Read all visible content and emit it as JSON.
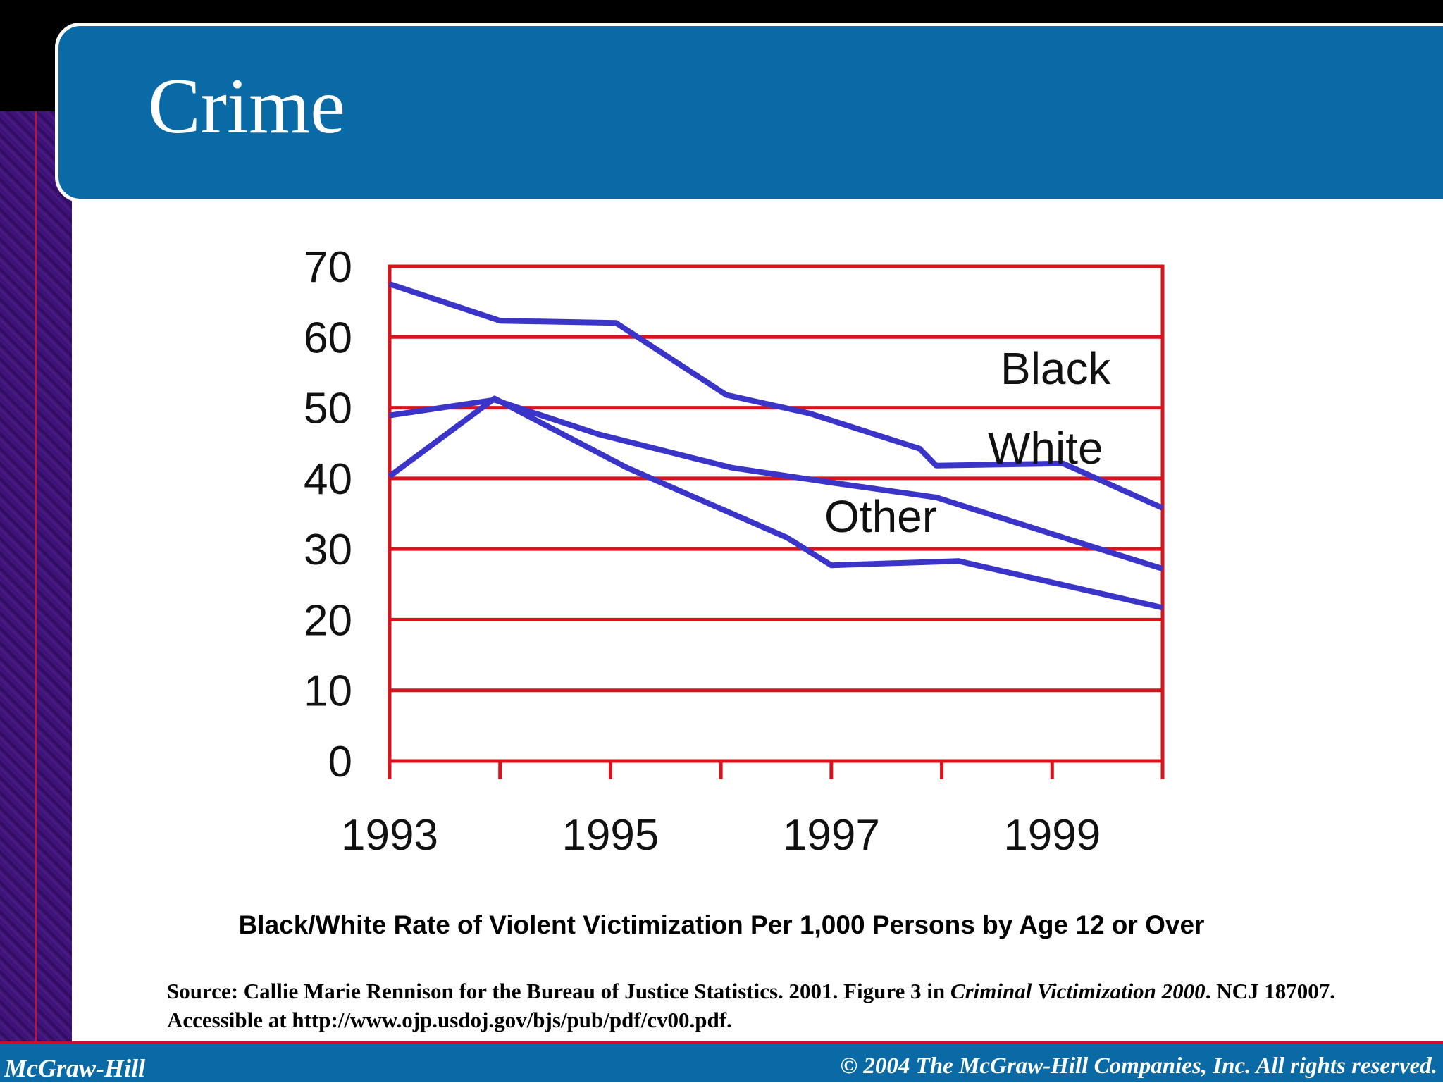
{
  "slide": {
    "title": "Crime",
    "caption": "Black/White Rate of Violent Victimization Per 1,000 Persons by Age 12 or Over",
    "source_prefix": "Source: Callie Marie Rennison for the Bureau of Justice Statistics. 2001. Figure 3 in ",
    "source_title": "Criminal Victimization 2000",
    "source_suffix": ". NCJ 187007. Accessible at http://www.ojp.usdoj.gov/bjs/pub/pdf/cv00.pdf.",
    "footer_left": "McGraw-Hill",
    "footer_right": "© 2004 The McGraw-Hill Companies, Inc. All rights reserved."
  },
  "colors": {
    "title_bar": "#0a6aa5",
    "grid": "#d7141e",
    "series_line": "#3a35c8",
    "left_strip": "#3a0f6e"
  },
  "chart_data": {
    "type": "line",
    "title": "",
    "xlabel": "",
    "ylabel": "",
    "x": [
      1993,
      1994,
      1995,
      1996,
      1997,
      1998,
      1999,
      2000
    ],
    "xlim": [
      1993,
      2000
    ],
    "ylim": [
      0,
      70
    ],
    "yticks": [
      "0",
      "10",
      "20",
      "30",
      "40",
      "50",
      "60",
      "70"
    ],
    "xticks": [
      {
        "x": 1993,
        "label": "1993"
      },
      {
        "x": 1995,
        "label": "1995"
      },
      {
        "x": 1997,
        "label": "1997"
      },
      {
        "x": 1999,
        "label": "1999"
      }
    ],
    "grid": true,
    "legend": "none",
    "series": [
      {
        "name": "Black",
        "points": [
          [
            1993,
            67.5
          ],
          [
            1994,
            62.3
          ],
          [
            1995.05,
            62.0
          ],
          [
            1996.05,
            51.8
          ],
          [
            1996.8,
            49.2
          ],
          [
            1997.8,
            44.2
          ],
          [
            1997.95,
            41.8
          ],
          [
            1999.1,
            42.1
          ],
          [
            2000,
            35.8
          ]
        ]
      },
      {
        "name": "White",
        "points": [
          [
            1993,
            48.9
          ],
          [
            1993.95,
            51.1
          ],
          [
            1994.9,
            46.2
          ],
          [
            1996.1,
            41.5
          ],
          [
            1997,
            39.4
          ],
          [
            1997.95,
            37.3
          ],
          [
            2000,
            27.2
          ]
        ]
      },
      {
        "name": "Other",
        "points": [
          [
            1993,
            40.3
          ],
          [
            1993.95,
            51.3
          ],
          [
            1995.15,
            41.5
          ],
          [
            1996.6,
            31.6
          ],
          [
            1997,
            27.7
          ],
          [
            1998.15,
            28.3
          ],
          [
            2000,
            21.7
          ]
        ]
      }
    ]
  }
}
